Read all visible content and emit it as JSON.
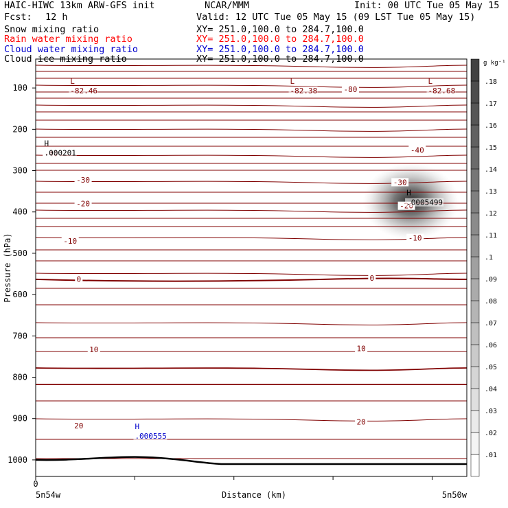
{
  "header": {
    "title": "HAIC-HIWC 13km ARW-GFS init",
    "center": "NCAR/MMM",
    "init": "Init: 00 UTC Tue 05 May 15",
    "fcst_label": "Fcst:",
    "fcst_value": "12 h",
    "valid": "Valid: 12 UTC Tue 05 May 15 (09 LST Tue 05 May 15)"
  },
  "fields": [
    {
      "name": "Snow mixing ratio",
      "xy": "XY= 251.0,100.0 to 284.7,100.0",
      "color": "#000000"
    },
    {
      "name": "Rain water mixing ratio",
      "xy": "XY= 251.0,100.0 to 284.7,100.0",
      "color": "#ff0000"
    },
    {
      "name": "Cloud water mixing ratio",
      "xy": "XY= 251.0,100.0 to 284.7,100.0",
      "color": "#0000cc"
    },
    {
      "name": "Cloud ice mixing ratio",
      "xy": "XY= 251.0,100.0 to 284.7,100.0",
      "color": "#000000"
    }
  ],
  "chart_data": {
    "type": "contour",
    "xlabel": "Distance (km)",
    "ylabel": "Pressure (hPa)",
    "ylim": [
      1040,
      30
    ],
    "y_ticks": [
      100,
      200,
      300,
      400,
      500,
      600,
      700,
      800,
      900,
      1000
    ],
    "x_tick_labels": [
      "5n54w",
      "5n50w"
    ],
    "x_origin_label": "0",
    "isotherm_color": "#800000",
    "isotherm_labels": [
      {
        "text": "-80",
        "x": 0.73,
        "p": 103
      },
      {
        "text": "-40",
        "x": 0.036,
        "p": 258
      },
      {
        "text": "-40",
        "x": 0.885,
        "p": 250
      },
      {
        "text": "-30",
        "x": 0.11,
        "p": 322
      },
      {
        "text": "-30",
        "x": 0.845,
        "p": 328
      },
      {
        "text": "-20",
        "x": 0.11,
        "p": 380
      },
      {
        "text": "-20",
        "x": 0.86,
        "p": 385
      },
      {
        "text": "-10",
        "x": 0.08,
        "p": 470
      },
      {
        "text": "-10",
        "x": 0.88,
        "p": 463
      },
      {
        "text": "0",
        "x": 0.1,
        "p": 562
      },
      {
        "text": "0",
        "x": 0.78,
        "p": 560
      },
      {
        "text": "10",
        "x": 0.135,
        "p": 733
      },
      {
        "text": "10",
        "x": 0.755,
        "p": 730
      },
      {
        "text": "20",
        "x": 0.1,
        "p": 917
      },
      {
        "text": "20",
        "x": 0.755,
        "p": 908
      }
    ],
    "extrema": [
      {
        "type": "L",
        "value": "-82.46",
        "x": 0.08,
        "p": 100,
        "color": "#800000"
      },
      {
        "type": "L",
        "value": "-82.38",
        "x": 0.59,
        "p": 100,
        "color": "#800000"
      },
      {
        "type": "L",
        "value": "-82.68",
        "x": 0.91,
        "p": 100,
        "color": "#800000"
      },
      {
        "type": "H",
        "value": ".000201",
        "x": 0.02,
        "p": 250,
        "color": "#000000"
      },
      {
        "type": "H",
        "value": ".0005499",
        "x": 0.86,
        "p": 370,
        "color": "#000000"
      },
      {
        "type": "H",
        "value": ".000555",
        "x": 0.23,
        "p": 935,
        "color": "#0000cc"
      }
    ],
    "shaded_field": {
      "name": "Cloud ice mixing ratio",
      "max_value": 0.0005499,
      "center_x": 0.87,
      "center_p": 375
    },
    "colorbar": {
      "unit": "g kg⁻¹",
      "levels": [
        ".01",
        ".02",
        ".03",
        ".04",
        ".05",
        ".06",
        ".07",
        ".08",
        ".09",
        ".1",
        ".11",
        ".12",
        ".13",
        ".14",
        ".15",
        ".16",
        ".17",
        ".18"
      ]
    }
  }
}
